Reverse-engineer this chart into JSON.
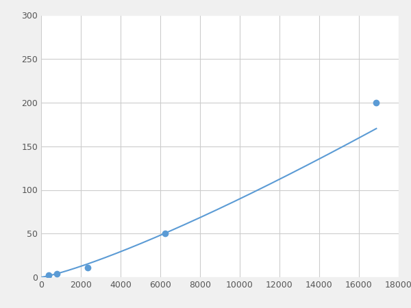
{
  "x": [
    390,
    780,
    2344,
    6250,
    16875
  ],
  "y": [
    2,
    4,
    11,
    50,
    200
  ],
  "line_color": "#5b9bd5",
  "marker_color": "#5b9bd5",
  "marker_size": 6,
  "marker_style": "o",
  "linewidth": 1.5,
  "xlim": [
    0,
    18000
  ],
  "ylim": [
    0,
    300
  ],
  "xticks": [
    0,
    2000,
    4000,
    6000,
    8000,
    10000,
    12000,
    14000,
    16000,
    18000
  ],
  "yticks": [
    0,
    50,
    100,
    150,
    200,
    250,
    300
  ],
  "grid_color": "#cccccc",
  "background_color": "#ffffff",
  "fig_background_color": "#f0f0f0",
  "tick_labelsize": 9,
  "tick_color": "#555555"
}
